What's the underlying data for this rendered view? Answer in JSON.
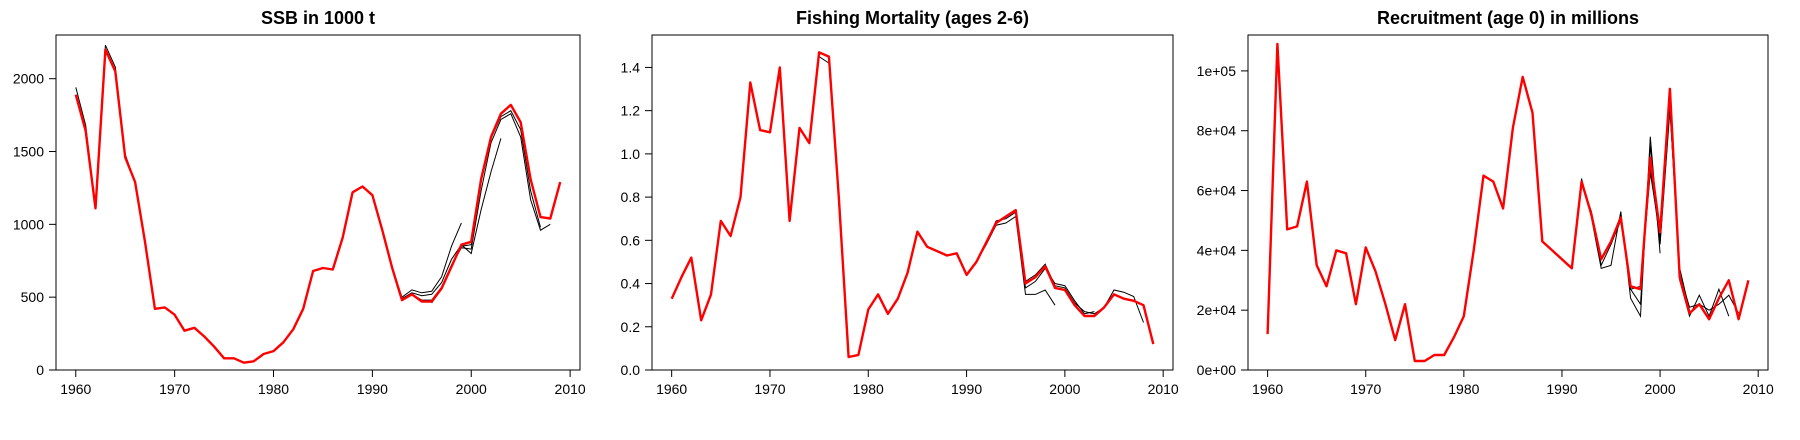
{
  "colors": {
    "main_series": "#ff0000",
    "retrospective_series": "#000000",
    "axis": "#000000"
  },
  "chart_data": [
    {
      "type": "line",
      "title": "SSB in 1000 t",
      "xlabel": "",
      "ylabel": "",
      "xlim": [
        1958,
        2011
      ],
      "ylim": [
        0,
        2300
      ],
      "x_ticks": [
        1960,
        1970,
        1980,
        1990,
        2000,
        2010
      ],
      "x_tick_labels": [
        "1960",
        "1970",
        "1980",
        "1990",
        "2000",
        "2010"
      ],
      "y_ticks": [
        0,
        500,
        1000,
        1500,
        2000
      ],
      "y_tick_labels": [
        "0",
        "500",
        "1000",
        "1500",
        "2000"
      ],
      "grid": false,
      "series": [
        {
          "role": "final",
          "x": [
            1960,
            1961,
            1962,
            1963,
            1964,
            1965,
            1966,
            1967,
            1968,
            1969,
            1970,
            1971,
            1972,
            1973,
            1974,
            1975,
            1976,
            1977,
            1978,
            1979,
            1980,
            1981,
            1982,
            1983,
            1984,
            1985,
            1986,
            1987,
            1988,
            1989,
            1990,
            1991,
            1992,
            1993,
            1994,
            1995,
            1996,
            1997,
            1998,
            1999,
            2000,
            2001,
            2002,
            2003,
            2004,
            2005,
            2006,
            2007,
            2008,
            2009
          ],
          "values": [
            1890,
            1640,
            1110,
            2200,
            2050,
            1460,
            1290,
            880,
            420,
            430,
            380,
            270,
            290,
            230,
            160,
            80,
            80,
            50,
            60,
            110,
            130,
            190,
            280,
            420,
            680,
            700,
            690,
            910,
            1220,
            1260,
            1200,
            960,
            700,
            480,
            520,
            470,
            470,
            560,
            710,
            860,
            880,
            1310,
            1600,
            1760,
            1820,
            1700,
            1310,
            1050,
            1040,
            1290
          ]
        },
        {
          "role": "retrospective",
          "x": [
            1960,
            1961,
            1962,
            1963,
            1964,
            1965,
            1966,
            1967,
            1968,
            1969,
            1970,
            1971,
            1972,
            1973,
            1974,
            1975,
            1976,
            1977,
            1978,
            1979,
            1980,
            1981,
            1982,
            1983,
            1984,
            1985,
            1986,
            1987,
            1988,
            1989,
            1990,
            1991,
            1992,
            1993,
            1994,
            1995,
            1996,
            1997,
            1998,
            1999
          ],
          "values": [
            1940,
            1680,
            1110,
            2230,
            2080,
            1480,
            1290,
            880,
            420,
            430,
            380,
            270,
            290,
            230,
            160,
            80,
            80,
            50,
            60,
            110,
            130,
            190,
            280,
            420,
            680,
            700,
            690,
            910,
            1220,
            1260,
            1200,
            960,
            700,
            500,
            550,
            530,
            540,
            640,
            850,
            1010
          ]
        },
        {
          "role": "retrospective",
          "x": [
            1993,
            1994,
            1995,
            1996,
            1997,
            1998,
            1999,
            2000,
            2001,
            2002,
            2003
          ],
          "values": [
            490,
            530,
            510,
            520,
            600,
            760,
            860,
            800,
            1100,
            1360,
            1590
          ]
        },
        {
          "role": "retrospective",
          "x": [
            1993,
            1994,
            1995,
            1996,
            1997,
            1998,
            1999,
            2000,
            2001,
            2002,
            2003,
            2004,
            2005,
            2006,
            2007,
            2008
          ],
          "values": [
            480,
            520,
            480,
            480,
            570,
            720,
            840,
            830,
            1230,
            1560,
            1720,
            1760,
            1600,
            1170,
            960,
            1000
          ]
        },
        {
          "role": "retrospective",
          "x": [
            1996,
            1997,
            1998,
            1999,
            2000,
            2001,
            2002,
            2003,
            2004,
            2005,
            2006,
            2007
          ],
          "values": [
            460,
            560,
            720,
            850,
            860,
            1290,
            1590,
            1740,
            1780,
            1650,
            1230,
            980
          ]
        }
      ]
    },
    {
      "type": "line",
      "title": "Fishing Mortality (ages 2-6)",
      "xlabel": "",
      "ylabel": "",
      "xlim": [
        1958,
        2011
      ],
      "ylim": [
        0,
        1.55
      ],
      "x_ticks": [
        1960,
        1970,
        1980,
        1990,
        2000,
        2010
      ],
      "x_tick_labels": [
        "1960",
        "1970",
        "1980",
        "1990",
        "2000",
        "2010"
      ],
      "y_ticks": [
        0.0,
        0.2,
        0.4,
        0.6,
        0.8,
        1.0,
        1.2,
        1.4
      ],
      "y_tick_labels": [
        "0.0",
        "0.2",
        "0.4",
        "0.6",
        "0.8",
        "1.0",
        "1.2",
        "1.4"
      ],
      "grid": false,
      "series": [
        {
          "role": "final",
          "x": [
            1960,
            1961,
            1962,
            1963,
            1964,
            1965,
            1966,
            1967,
            1968,
            1969,
            1970,
            1971,
            1972,
            1973,
            1974,
            1975,
            1976,
            1977,
            1978,
            1979,
            1980,
            1981,
            1982,
            1983,
            1984,
            1985,
            1986,
            1987,
            1988,
            1989,
            1990,
            1991,
            1992,
            1993,
            1994,
            1995,
            1996,
            1997,
            1998,
            1999,
            2000,
            2001,
            2002,
            2003,
            2004,
            2005,
            2006,
            2007,
            2008,
            2009
          ],
          "values": [
            0.33,
            0.43,
            0.52,
            0.23,
            0.35,
            0.69,
            0.62,
            0.8,
            1.33,
            1.11,
            1.1,
            1.4,
            0.69,
            1.12,
            1.05,
            1.47,
            1.45,
            0.8,
            0.06,
            0.07,
            0.28,
            0.35,
            0.26,
            0.33,
            0.45,
            0.64,
            0.57,
            0.55,
            0.53,
            0.54,
            0.44,
            0.5,
            0.59,
            0.68,
            0.71,
            0.74,
            0.4,
            0.43,
            0.48,
            0.38,
            0.37,
            0.3,
            0.25,
            0.25,
            0.29,
            0.35,
            0.33,
            0.32,
            0.3,
            0.12
          ]
        },
        {
          "role": "retrospective",
          "x": [
            1974,
            1975,
            1976,
            1977
          ],
          "values": [
            1.05,
            1.45,
            1.42,
            0.8
          ]
        },
        {
          "role": "retrospective",
          "x": [
            1990,
            1991,
            1992,
            1993,
            1994,
            1995,
            1996,
            1997,
            1998,
            1999
          ],
          "values": [
            0.44,
            0.5,
            0.58,
            0.67,
            0.68,
            0.71,
            0.35,
            0.35,
            0.37,
            0.3
          ]
        },
        {
          "role": "retrospective",
          "x": [
            1990,
            1991,
            1992,
            1993,
            1994,
            1995,
            1996,
            1997,
            1998,
            1999,
            2000,
            2001,
            2002,
            2003
          ],
          "values": [
            0.44,
            0.5,
            0.59,
            0.69,
            0.7,
            0.73,
            0.38,
            0.41,
            0.47,
            0.4,
            0.39,
            0.32,
            0.26,
            0.27
          ]
        },
        {
          "role": "retrospective",
          "x": [
            1994,
            1995,
            1996,
            1997,
            1998,
            1999,
            2000,
            2001,
            2002,
            2003,
            2004,
            2005,
            2006,
            2007,
            2008
          ],
          "values": [
            0.71,
            0.74,
            0.41,
            0.44,
            0.49,
            0.39,
            0.38,
            0.31,
            0.27,
            0.26,
            0.29,
            0.37,
            0.36,
            0.34,
            0.22
          ]
        }
      ]
    },
    {
      "type": "line",
      "title": "Recruitment (age 0) in millions",
      "xlabel": "",
      "ylabel": "",
      "xlim": [
        1958,
        2011
      ],
      "ylim": [
        0,
        112000
      ],
      "x_ticks": [
        1960,
        1970,
        1980,
        1990,
        2000,
        2010
      ],
      "x_tick_labels": [
        "1960",
        "1970",
        "1980",
        "1990",
        "2000",
        "2010"
      ],
      "y_ticks": [
        0,
        20000,
        40000,
        60000,
        80000,
        100000
      ],
      "y_tick_labels": [
        "0e+00",
        "2e+04",
        "4e+04",
        "6e+04",
        "8e+04",
        "1e+05"
      ],
      "grid": false,
      "series": [
        {
          "role": "final",
          "x": [
            1960,
            1961,
            1962,
            1963,
            1964,
            1965,
            1966,
            1967,
            1968,
            1969,
            1970,
            1971,
            1972,
            1973,
            1974,
            1975,
            1976,
            1977,
            1978,
            1979,
            1980,
            1981,
            1982,
            1983,
            1984,
            1985,
            1986,
            1987,
            1988,
            1989,
            1990,
            1991,
            1992,
            1993,
            1994,
            1995,
            1996,
            1997,
            1998,
            1999,
            2000,
            2001,
            2002,
            2003,
            2004,
            2005,
            2006,
            2007,
            2008,
            2009
          ],
          "values": [
            12000,
            109000,
            47000,
            48000,
            63000,
            35000,
            28000,
            40000,
            39000,
            22000,
            41000,
            33000,
            22000,
            10000,
            22000,
            3000,
            3000,
            5000,
            5000,
            11000,
            18000,
            40000,
            65000,
            63000,
            54000,
            81000,
            98000,
            86000,
            43000,
            40000,
            37000,
            34000,
            63000,
            52000,
            37000,
            43000,
            51000,
            28000,
            27000,
            71000,
            46000,
            94000,
            31000,
            19000,
            22000,
            17000,
            24000,
            30000,
            17000,
            30000
          ]
        },
        {
          "role": "retrospective",
          "x": [
            1990,
            1991,
            1992,
            1993,
            1994,
            1995,
            1996,
            1997,
            1998,
            1999,
            2000
          ],
          "values": [
            37000,
            34000,
            64000,
            51000,
            34000,
            35000,
            53000,
            24000,
            18000,
            78000,
            39000
          ]
        },
        {
          "role": "retrospective",
          "x": [
            1992,
            1993,
            1994,
            1995,
            1996,
            1997,
            1998,
            1999,
            2000,
            2001,
            2002,
            2003
          ],
          "values": [
            62000,
            53000,
            35000,
            42000,
            50000,
            27000,
            22000,
            75000,
            42000,
            87000,
            34000,
            20000
          ]
        },
        {
          "role": "retrospective",
          "x": [
            1995,
            1996,
            1997,
            1998,
            1999,
            2000,
            2001,
            2002,
            2003,
            2004,
            2005,
            2006,
            2007
          ],
          "values": [
            42000,
            52000,
            27000,
            28000,
            66000,
            45000,
            90000,
            30000,
            18000,
            25000,
            18000,
            27000,
            18000
          ]
        },
        {
          "role": "retrospective",
          "x": [
            1998,
            1999,
            2000,
            2001,
            2002,
            2003,
            2004,
            2005,
            2006,
            2007,
            2008
          ],
          "values": [
            29000,
            68000,
            43000,
            88000,
            32000,
            21000,
            22000,
            20000,
            22000,
            25000,
            19000
          ]
        }
      ]
    }
  ]
}
